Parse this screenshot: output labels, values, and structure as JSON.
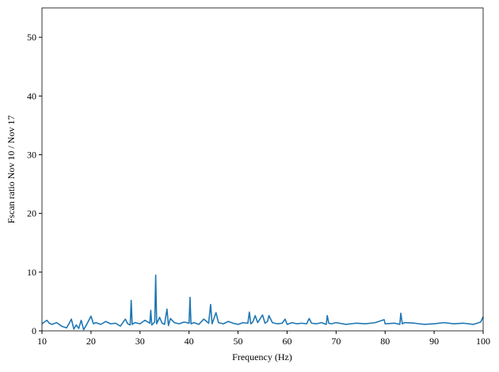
{
  "chart_data": {
    "type": "line",
    "xlabel": "Frequency (Hz)",
    "ylabel": "Fscan ratio Nov 10 / Nov 17",
    "xlim": [
      10,
      100
    ],
    "ylim": [
      0,
      55
    ],
    "xticks": [
      10,
      20,
      30,
      40,
      50,
      60,
      70,
      80,
      90,
      100
    ],
    "yticks": [
      0,
      10,
      20,
      30,
      40,
      50
    ],
    "series": [
      {
        "name": "ratio",
        "color": "#1f77b4",
        "x": [
          10,
          10.5,
          11,
          11.5,
          12,
          13,
          14,
          15,
          15.5,
          16,
          16.5,
          17,
          17.5,
          18,
          18.5,
          19,
          20,
          20.5,
          21,
          22,
          23,
          24,
          25,
          26,
          27,
          27.5,
          28,
          28.2,
          28.4,
          29,
          30,
          31,
          32,
          32.2,
          32.4,
          33,
          33.2,
          33.4,
          34,
          34.5,
          35,
          35.5,
          35.8,
          36.2,
          37,
          38,
          39,
          40,
          40.2,
          40.4,
          41,
          42,
          43,
          44,
          44.4,
          44.7,
          45.5,
          46,
          47,
          48,
          49,
          50,
          51,
          52,
          52.3,
          52.6,
          53,
          53.5,
          54,
          55,
          55.5,
          56,
          56.3,
          57,
          58,
          59,
          59.6,
          60,
          61,
          62,
          63,
          64,
          64.5,
          65,
          66,
          67,
          68,
          68.2,
          68.5,
          69,
          70,
          72,
          74,
          76,
          78,
          79.8,
          80,
          82,
          83,
          83.2,
          83.5,
          84,
          86,
          88,
          90,
          92,
          94,
          96,
          98,
          99.5,
          100
        ],
        "values": [
          1.2,
          1.5,
          1.8,
          1.3,
          1.1,
          1.4,
          0.8,
          0.5,
          1.2,
          2.0,
          0.3,
          1.0,
          0.4,
          1.8,
          0.2,
          0.9,
          2.5,
          1.2,
          1.4,
          1.1,
          1.6,
          1.2,
          1.3,
          0.8,
          2.0,
          1.2,
          1.0,
          5.2,
          1.1,
          1.4,
          1.2,
          1.8,
          1.3,
          3.5,
          1.0,
          1.5,
          9.5,
          1.2,
          2.3,
          1.3,
          1.1,
          3.7,
          0.9,
          2.1,
          1.4,
          1.2,
          1.5,
          1.3,
          5.7,
          1.2,
          1.4,
          1.1,
          2.0,
          1.3,
          4.5,
          1.2,
          3.1,
          1.4,
          1.2,
          1.6,
          1.3,
          1.1,
          1.4,
          1.3,
          3.2,
          1.2,
          1.5,
          2.6,
          1.4,
          2.7,
          1.3,
          1.6,
          2.6,
          1.4,
          1.2,
          1.3,
          2.0,
          1.1,
          1.4,
          1.2,
          1.3,
          1.2,
          2.1,
          1.3,
          1.2,
          1.4,
          1.1,
          2.6,
          1.3,
          1.2,
          1.4,
          1.1,
          1.3,
          1.2,
          1.4,
          1.9,
          1.2,
          1.3,
          1.1,
          3.0,
          1.2,
          1.4,
          1.3,
          1.1,
          1.2,
          1.4,
          1.2,
          1.3,
          1.1,
          1.5,
          2.4
        ]
      }
    ]
  }
}
